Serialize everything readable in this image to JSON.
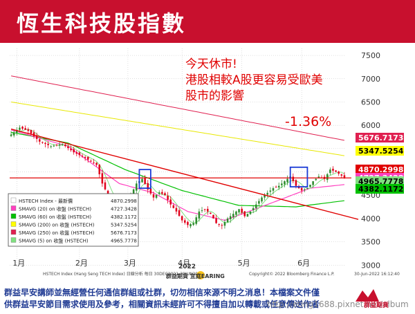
{
  "header": {
    "title": "恆生科技股指數"
  },
  "annotation": {
    "lines": [
      "今天休市!",
      "港股相較A股更容易受歐美",
      "股市的影響"
    ],
    "change": "-1.36%"
  },
  "chart_meta": {
    "source_text": "HSTECH Index (Hang Seng TECH Index) 日線分析  每日 30DEC2021-30JUN2022",
    "copyright_text": "Copyright© 2022 Bloomberg Finance L.P.",
    "date_text": "30-Jun-2022 16:12:40"
  },
  "event_logo": {
    "year": "2022",
    "text": "群益期貨 宜庭EARING"
  },
  "disclaimer": {
    "line1": "群益早安講師並無經營任何通信群組或社群，切勿相信來源不明之消息！本檔案文件僅",
    "line2": "供群益早安節目需求使用及參考，相關資訊未經許可不得擅自加以轉載或任意傳送作者"
  },
  "watermark": "http://eting1688.pixnet.net/album",
  "brand": {
    "name": "群益期貨",
    "color": "#c8102e"
  },
  "colors": {
    "header_bg": "#c8102e",
    "up_candle": "#2e8b2e",
    "down_candle": "#e0001b",
    "ma20": "#ff40c0",
    "ma60": "#00c000",
    "ma200": "#e8e800",
    "ma250": "#e02050",
    "ma5": "#80e080",
    "trendline": "#e00000",
    "hline": "#e00000",
    "highlight_box": "#1a3ad6"
  },
  "chart_data": {
    "type": "candlestick",
    "y_ticks": [
      3000,
      3500,
      4000,
      4500,
      5000,
      5500,
      6000,
      6500,
      7000,
      7500
    ],
    "ylim": [
      2900,
      7650
    ],
    "x_ticks": [
      "1月",
      "2月",
      "3月",
      "4月",
      "5月",
      "6月"
    ],
    "x_tick_index": [
      2,
      24,
      41,
      60,
      81,
      102
    ],
    "n_days": 118,
    "price_labels": [
      {
        "value": "5676.7173",
        "price": 5676.7173,
        "bg": "#e02050",
        "fg": "#ffffff"
      },
      {
        "value": "5347.5254",
        "price": 5347.5254,
        "bg": "#ffff00",
        "fg": "#000000"
      },
      {
        "value": "4870.2998",
        "price": 4870.2998,
        "bg": "#e00000",
        "fg": "#ffffff"
      },
      {
        "value": "4727.3428",
        "price": 4727.3428,
        "bg": "#ff40c0",
        "fg": "#ffffff"
      },
      {
        "value": "4965.7778",
        "price": 4965.7778,
        "bg": "#80e080",
        "fg": "#000000"
      },
      {
        "value": "4382.1172",
        "price": 4382.1172,
        "bg": "#00c000",
        "fg": "#000000"
      }
    ],
    "legend": [
      {
        "label": "HSTECH Index - 最新價",
        "value": "4870.2998",
        "color": "#ffffff"
      },
      {
        "label": "SMAVG (20)  on 收盤 (HSTECH)",
        "value": "4727.3428",
        "color": "#ff40c0"
      },
      {
        "label": "SMAVG (60)  on 收盤 (HSTECH)",
        "value": "4382.1172",
        "color": "#00c000"
      },
      {
        "label": "SMAVG (200)  on 收盤 (HSTECH)",
        "value": "5347.5254",
        "color": "#ffff00"
      },
      {
        "label": "SMAVG (250)  on 收盤 (HSTECH)",
        "value": "5676.7173",
        "color": "#e02050"
      },
      {
        "label": "SMAVG (5)  on 收盤 (HSTECH)",
        "value": "4965.7778",
        "color": "#80e080"
      }
    ],
    "close_key_points": [
      [
        0,
        5800
      ],
      [
        3,
        5950
      ],
      [
        6,
        5880
      ],
      [
        10,
        5650
      ],
      [
        14,
        5550
      ],
      [
        18,
        5600
      ],
      [
        22,
        5420
      ],
      [
        26,
        5300
      ],
      [
        30,
        5150
      ],
      [
        32,
        4750
      ],
      [
        34,
        4500
      ],
      [
        36,
        4300
      ],
      [
        38,
        3900
      ],
      [
        39,
        3550
      ],
      [
        40,
        4050
      ],
      [
        42,
        4500
      ],
      [
        44,
        4750
      ],
      [
        46,
        4850
      ],
      [
        48,
        4620
      ],
      [
        50,
        4450
      ],
      [
        52,
        4560
      ],
      [
        54,
        4500
      ],
      [
        56,
        4300
      ],
      [
        58,
        4150
      ],
      [
        60,
        3960
      ],
      [
        62,
        3860
      ],
      [
        64,
        3900
      ],
      [
        66,
        4150
      ],
      [
        68,
        4200
      ],
      [
        70,
        4100
      ],
      [
        72,
        3900
      ],
      [
        74,
        3850
      ],
      [
        76,
        4000
      ],
      [
        78,
        4100
      ],
      [
        80,
        4200
      ],
      [
        82,
        4050
      ],
      [
        84,
        4150
      ],
      [
        86,
        4300
      ],
      [
        88,
        4450
      ],
      [
        90,
        4550
      ],
      [
        92,
        4650
      ],
      [
        94,
        4700
      ],
      [
        96,
        4800
      ],
      [
        98,
        4900
      ],
      [
        100,
        4700
      ],
      [
        102,
        4600
      ],
      [
        104,
        4650
      ],
      [
        106,
        4800
      ],
      [
        108,
        4900
      ],
      [
        110,
        4850
      ],
      [
        112,
        5050
      ],
      [
        114,
        5000
      ],
      [
        116,
        4920
      ],
      [
        117,
        4870
      ]
    ],
    "ma_key_points": {
      "ma250": [
        [
          0,
          7060
        ],
        [
          117,
          5676.7173
        ]
      ],
      "ma200": [
        [
          0,
          6500
        ],
        [
          117,
          5347.5254
        ]
      ],
      "ma60": [
        [
          0,
          5850
        ],
        [
          20,
          5620
        ],
        [
          40,
          5050
        ],
        [
          60,
          4600
        ],
        [
          80,
          4280
        ],
        [
          100,
          4250
        ],
        [
          117,
          4382.1172
        ]
      ],
      "ma20": [
        [
          0,
          5900
        ],
        [
          20,
          5550
        ],
        [
          38,
          4750
        ],
        [
          50,
          4550
        ],
        [
          62,
          4150
        ],
        [
          75,
          3960
        ],
        [
          90,
          4300
        ],
        [
          105,
          4650
        ],
        [
          117,
          4727.3428
        ]
      ]
    },
    "trendline": [
      [
        0,
        5920
      ],
      [
        117,
        4070
      ]
    ],
    "hline": 4870.2998,
    "highlight_boxes": [
      {
        "i0": 45,
        "i1": 49,
        "p0": 4650,
        "p1": 5050
      },
      {
        "i0": 98,
        "i1": 104,
        "p0": 4680,
        "p1": 5100
      }
    ]
  }
}
